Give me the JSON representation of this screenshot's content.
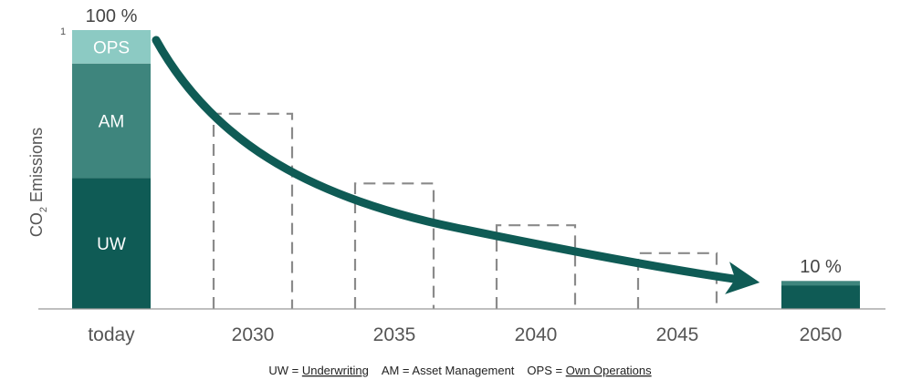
{
  "chart_data": {
    "type": "bar",
    "ylabel_main": "CO",
    "ylabel_sub": "2",
    "ylabel_rest": " Emissions",
    "ymax_tick": "1",
    "categories": [
      "today",
      "2030",
      "2035",
      "2040",
      "2045",
      "2050"
    ],
    "today_segments": [
      {
        "label": "UW",
        "value": 0.47,
        "color": "#0f5b55"
      },
      {
        "label": "AM",
        "value": 0.41,
        "color": "#3e857d"
      },
      {
        "label": "OPS",
        "value": 0.12,
        "color": "#8ccac3"
      }
    ],
    "targets": [
      {
        "year": "2030",
        "value": 0.7
      },
      {
        "year": "2035",
        "value": 0.45
      },
      {
        "year": "2040",
        "value": 0.3
      },
      {
        "year": "2045",
        "value": 0.2
      }
    ],
    "final": {
      "year": "2050",
      "value": 0.1,
      "color": "#0f5b55",
      "top_color": "#3e857d"
    },
    "start_label": "100 %",
    "end_label": "10 %",
    "arrow_color": "#0f5b55",
    "ylim": [
      0,
      1
    ]
  },
  "legend_note": {
    "uw": "UW = ",
    "uw_word": "Underwriting",
    "am": "AM = Asset Management",
    "ops": "OPS = ",
    "ops_word": "Own Operations"
  }
}
